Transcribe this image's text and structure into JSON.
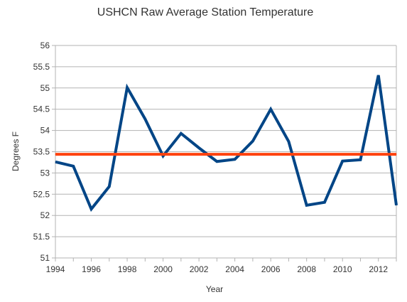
{
  "chart_data": {
    "type": "line",
    "title": "USHCN Raw Average Station Temperature",
    "xlabel": "Year",
    "ylabel": "Degrees F",
    "xlim": [
      1994,
      2013
    ],
    "ylim": [
      51,
      56
    ],
    "x_ticks": [
      1994,
      1996,
      1998,
      2000,
      2002,
      2004,
      2006,
      2008,
      2010,
      2012
    ],
    "y_ticks": [
      51,
      51.5,
      52,
      52.5,
      53,
      53.5,
      54,
      54.5,
      55,
      55.5,
      56
    ],
    "x_tick_labels": [
      "1994",
      "1996",
      "1998",
      "2000",
      "2002",
      "2004",
      "2006",
      "2008",
      "2010",
      "2012"
    ],
    "y_tick_labels": [
      "51",
      "51.5",
      "52",
      "52.5",
      "53",
      "53.5",
      "54",
      "54.5",
      "55",
      "55.5",
      "56"
    ],
    "grid": "horizontal",
    "legend": "none",
    "series": [
      {
        "color": "#004586",
        "x": [
          1994,
          1995,
          1996,
          1997,
          1998,
          1999,
          2000,
          2001,
          2002,
          2003,
          2004,
          2005,
          2006,
          2007,
          2008,
          2009,
          2010,
          2011,
          2012,
          2013
        ],
        "values": [
          53.26,
          53.16,
          52.15,
          52.68,
          55.01,
          54.27,
          53.4,
          53.93,
          53.59,
          53.27,
          53.32,
          53.75,
          54.5,
          53.74,
          52.24,
          52.31,
          53.28,
          53.31,
          55.3,
          52.24
        ]
      },
      {
        "color": "#ff420e",
        "x": [
          1994,
          2013
        ],
        "values": [
          53.44,
          53.44
        ]
      }
    ]
  }
}
